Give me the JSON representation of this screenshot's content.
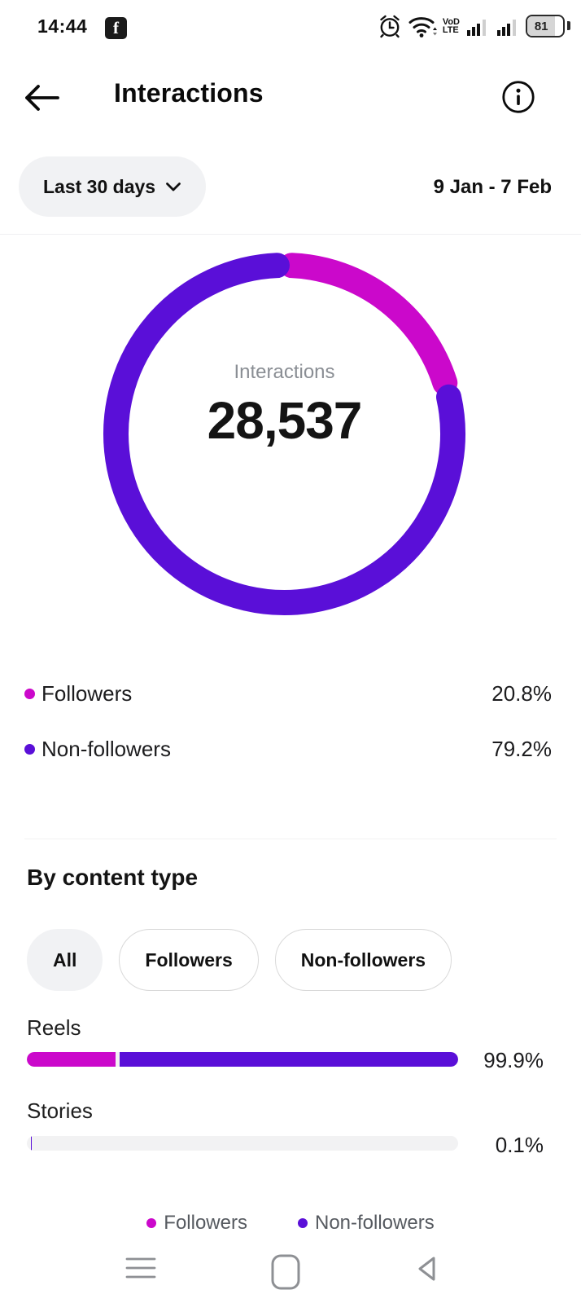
{
  "status_bar": {
    "time": "14:44",
    "facebook_glyph": "f",
    "volte": {
      "line1": "VoD",
      "line2": "LTE"
    },
    "battery_level": "81"
  },
  "header": {
    "title": "Interactions"
  },
  "filters": {
    "period_label": "Last 30 days",
    "date_range": "9 Jan - 7 Feb"
  },
  "donut": {
    "center_label": "Interactions",
    "center_value": "28,537"
  },
  "audience_legend": {
    "items": [
      {
        "label": "Followers",
        "value": "20.8%",
        "color": "#cb08cb"
      },
      {
        "label": "Non-followers",
        "value": "79.2%",
        "color": "#5a0fd8"
      }
    ]
  },
  "content_section": {
    "heading": "By content type",
    "chips": [
      {
        "label": "All",
        "selected": true
      },
      {
        "label": "Followers",
        "selected": false
      },
      {
        "label": "Non-followers",
        "selected": false
      }
    ],
    "rows": [
      {
        "label": "Reels",
        "value": "99.9%"
      },
      {
        "label": "Stories",
        "value": "0.1%"
      }
    ],
    "footer_legend": [
      {
        "label": "Followers",
        "color": "#cb08cb"
      },
      {
        "label": "Non-followers",
        "color": "#5a0fd8"
      }
    ]
  },
  "colors": {
    "followers": "#cb08cb",
    "non_followers": "#5a0fd8",
    "chip_bg": "#f1f2f4",
    "track_bg": "#f2f2f3"
  },
  "chart_data": [
    {
      "type": "pie",
      "style": "donut",
      "title": "Interactions",
      "center_value": 28537,
      "series": [
        {
          "name": "Followers",
          "value": 20.8,
          "color": "#cb08cb"
        },
        {
          "name": "Non-followers",
          "value": 79.2,
          "color": "#5a0fd8"
        }
      ],
      "unit": "%",
      "legend_position": "bottom",
      "segment_gap_degrees": 5,
      "start_angle": "top"
    },
    {
      "type": "bar",
      "orientation": "horizontal",
      "categories": [
        "Reels",
        "Stories"
      ],
      "totals": [
        99.9,
        0.1
      ],
      "value_labels": [
        "99.9%",
        "0.1%"
      ],
      "series": [
        {
          "name": "Followers",
          "color": "#cb08cb",
          "values": [
            20.8,
            0
          ]
        },
        {
          "name": "Non-followers",
          "color": "#5a0fd8",
          "values": [
            79.1,
            0.1
          ]
        }
      ],
      "xlim": [
        0,
        100
      ],
      "grid": false
    }
  ]
}
